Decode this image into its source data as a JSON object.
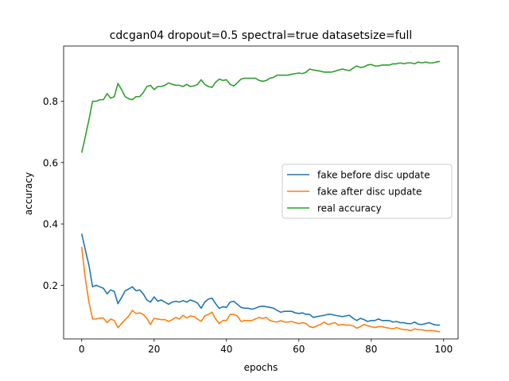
{
  "chart_data": {
    "type": "line",
    "title": "cdcgan04 dropout=0.5 spectral=true datasetsize=full",
    "xlabel": "epochs",
    "ylabel": "accuracy",
    "xlim": [
      -5,
      104
    ],
    "ylim": [
      0.025,
      0.98
    ],
    "xticks": [
      0,
      20,
      40,
      60,
      80,
      100
    ],
    "yticks": [
      0.2,
      0.4,
      0.6,
      0.8
    ],
    "legend_position": "center-right",
    "grid": false,
    "series": [
      {
        "name": "fake before disc update",
        "color": "#1f77b4",
        "values": [
          0.368,
          0.315,
          0.265,
          0.195,
          0.2,
          0.195,
          0.19,
          0.172,
          0.185,
          0.18,
          0.14,
          0.16,
          0.182,
          0.188,
          0.195,
          0.182,
          0.185,
          0.172,
          0.152,
          0.145,
          0.162,
          0.148,
          0.152,
          0.145,
          0.138,
          0.145,
          0.148,
          0.145,
          0.15,
          0.145,
          0.152,
          0.148,
          0.142,
          0.125,
          0.145,
          0.155,
          0.158,
          0.14,
          0.125,
          0.13,
          0.128,
          0.145,
          0.148,
          0.138,
          0.128,
          0.125,
          0.125,
          0.122,
          0.125,
          0.13,
          0.132,
          0.13,
          0.128,
          0.125,
          0.118,
          0.112,
          0.115,
          0.115,
          0.115,
          0.11,
          0.108,
          0.11,
          0.105,
          0.105,
          0.095,
          0.098,
          0.1,
          0.102,
          0.105,
          0.105,
          0.102,
          0.1,
          0.098,
          0.1,
          0.102,
          0.092,
          0.085,
          0.092,
          0.088,
          0.082,
          0.085,
          0.085,
          0.09,
          0.085,
          0.085,
          0.085,
          0.08,
          0.082,
          0.078,
          0.078,
          0.075,
          0.075,
          0.08,
          0.073,
          0.072,
          0.075,
          0.078,
          0.073,
          0.07,
          0.07
        ]
      },
      {
        "name": "fake after disc update",
        "color": "#ff7f0e",
        "values": [
          0.325,
          0.22,
          0.145,
          0.09,
          0.09,
          0.093,
          0.093,
          0.078,
          0.09,
          0.085,
          0.062,
          0.075,
          0.088,
          0.1,
          0.118,
          0.108,
          0.11,
          0.105,
          0.092,
          0.072,
          0.092,
          0.09,
          0.088,
          0.088,
          0.082,
          0.088,
          0.095,
          0.09,
          0.102,
          0.093,
          0.1,
          0.098,
          0.09,
          0.082,
          0.1,
          0.105,
          0.112,
          0.09,
          0.075,
          0.085,
          0.085,
          0.105,
          0.105,
          0.1,
          0.082,
          0.085,
          0.085,
          0.085,
          0.09,
          0.095,
          0.092,
          0.095,
          0.085,
          0.082,
          0.08,
          0.085,
          0.08,
          0.08,
          0.082,
          0.078,
          0.075,
          0.078,
          0.075,
          0.065,
          0.062,
          0.068,
          0.072,
          0.08,
          0.072,
          0.075,
          0.078,
          0.07,
          0.072,
          0.07,
          0.07,
          0.068,
          0.06,
          0.065,
          0.072,
          0.068,
          0.065,
          0.062,
          0.065,
          0.065,
          0.062,
          0.06,
          0.058,
          0.062,
          0.058,
          0.055,
          0.055,
          0.052,
          0.058,
          0.055,
          0.055,
          0.052,
          0.052,
          0.052,
          0.05,
          0.048
        ]
      },
      {
        "name": "real accuracy",
        "color": "#2ca02c",
        "values": [
          0.632,
          0.685,
          0.74,
          0.8,
          0.8,
          0.805,
          0.805,
          0.825,
          0.81,
          0.815,
          0.858,
          0.838,
          0.815,
          0.808,
          0.805,
          0.815,
          0.815,
          0.828,
          0.848,
          0.852,
          0.838,
          0.848,
          0.848,
          0.852,
          0.86,
          0.855,
          0.852,
          0.852,
          0.848,
          0.855,
          0.848,
          0.85,
          0.855,
          0.87,
          0.855,
          0.848,
          0.845,
          0.862,
          0.872,
          0.868,
          0.87,
          0.855,
          0.85,
          0.86,
          0.872,
          0.875,
          0.875,
          0.875,
          0.875,
          0.868,
          0.865,
          0.868,
          0.875,
          0.878,
          0.885,
          0.885,
          0.885,
          0.885,
          0.888,
          0.89,
          0.892,
          0.89,
          0.895,
          0.905,
          0.902,
          0.9,
          0.898,
          0.895,
          0.895,
          0.895,
          0.898,
          0.902,
          0.905,
          0.902,
          0.9,
          0.908,
          0.915,
          0.91,
          0.912,
          0.918,
          0.92,
          0.915,
          0.915,
          0.918,
          0.918,
          0.918,
          0.922,
          0.922,
          0.925,
          0.922,
          0.925,
          0.925,
          0.922,
          0.928,
          0.925,
          0.928,
          0.925,
          0.925,
          0.928,
          0.93
        ]
      }
    ]
  }
}
